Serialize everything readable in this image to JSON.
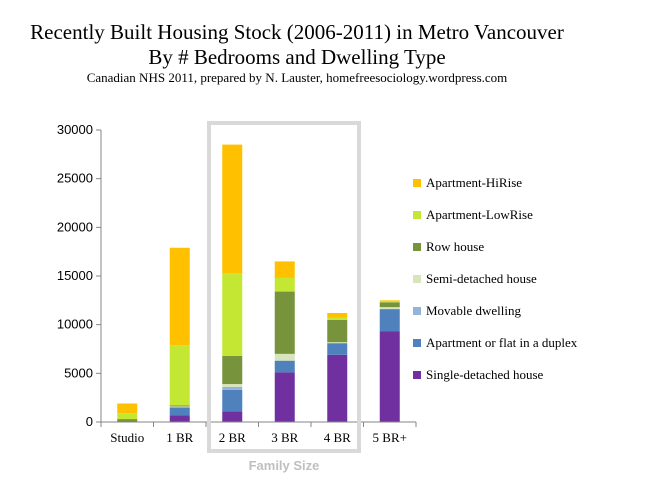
{
  "chart_data": {
    "type": "bar",
    "stacked": true,
    "title": "Recently Built Housing Stock (2006-2011) in Metro Vancouver",
    "subtitle": "By # Bedrooms and Dwelling Type",
    "caption": "Canadian NHS 2011, prepared  by  N. Lauster,  homefreesociology.wordpress.com",
    "xlabel": "Family Size",
    "ylabel": "",
    "ylim": [
      0,
      30000
    ],
    "yticks": [
      0,
      5000,
      10000,
      15000,
      20000,
      25000,
      30000
    ],
    "grid": false,
    "legend_position": "right",
    "highlighted_category": "2 BR",
    "categories": [
      "Studio",
      "1 BR",
      "2 BR",
      "3 BR",
      "4 BR",
      "5 BR+"
    ],
    "series": [
      {
        "name": "Single-detached house",
        "color": "#7030a0",
        "values": [
          0,
          700,
          1100,
          5100,
          6900,
          9300
        ]
      },
      {
        "name": "Apartment or flat in a duplex",
        "color": "#4f81bd",
        "values": [
          100,
          800,
          2200,
          1200,
          1200,
          2300
        ]
      },
      {
        "name": "Movable dwelling",
        "color": "#95b3d7",
        "values": [
          0,
          0,
          300,
          0,
          0,
          0
        ]
      },
      {
        "name": "Semi-detached house",
        "color": "#d7e4bc",
        "values": [
          0,
          100,
          300,
          700,
          100,
          200
        ]
      },
      {
        "name": "Row house",
        "color": "#77933c",
        "values": [
          200,
          100,
          2900,
          6400,
          2300,
          500
        ]
      },
      {
        "name": "Apartment-LowRise",
        "color": "#c4e734",
        "values": [
          600,
          6200,
          8500,
          1400,
          200,
          100
        ]
      },
      {
        "name": "Apartment-HiRise",
        "color": "#ffc000",
        "values": [
          1000,
          10000,
          13200,
          1700,
          500,
          100
        ]
      }
    ]
  }
}
